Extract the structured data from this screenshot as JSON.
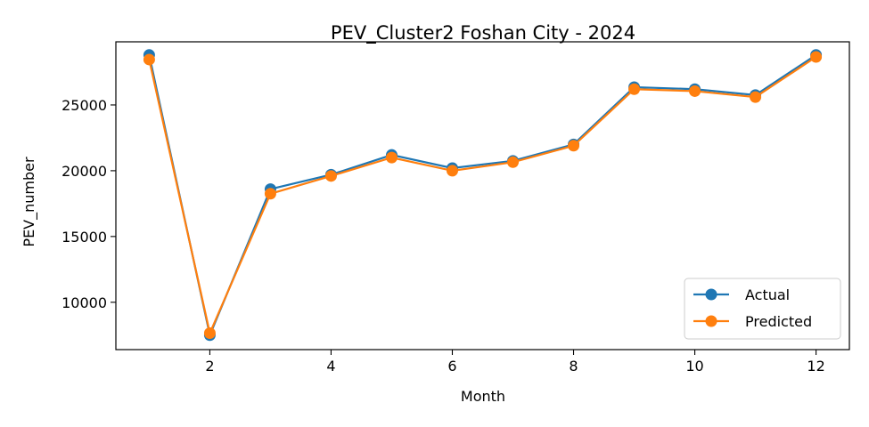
{
  "chart_data": {
    "type": "line",
    "title": "PEV_Cluster2 Foshan City - 2024",
    "xlabel": "Month",
    "ylabel": "PEV_number",
    "x": [
      1,
      2,
      3,
      4,
      5,
      6,
      7,
      8,
      9,
      10,
      11,
      12
    ],
    "xlim": [
      0.45,
      12.55
    ],
    "ylim": [
      6400,
      29800
    ],
    "xticks": [
      2,
      4,
      6,
      8,
      10,
      12
    ],
    "yticks": [
      10000,
      15000,
      20000,
      25000
    ],
    "grid": false,
    "legend_position": "lower-right",
    "series": [
      {
        "name": "Actual",
        "color": "#1f77b4",
        "marker": "circle",
        "values": [
          28800,
          7500,
          18600,
          19700,
          21200,
          20200,
          20750,
          22000,
          26350,
          26200,
          25750,
          28800
        ]
      },
      {
        "name": "Predicted",
        "color": "#ff7f0e",
        "marker": "circle",
        "values": [
          28450,
          7650,
          18250,
          19600,
          21000,
          20000,
          20650,
          21900,
          26200,
          26050,
          25600,
          28650
        ]
      }
    ]
  }
}
